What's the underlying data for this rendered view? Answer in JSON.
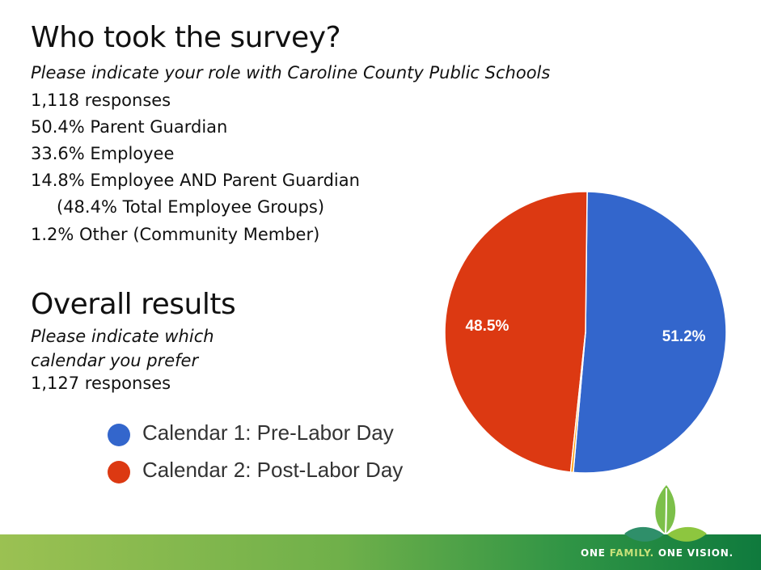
{
  "survey": {
    "title": "Who took the survey?",
    "subtitle": "Please indicate your role with Caroline County Public Schools",
    "lines": [
      "1,118 responses",
      "50.4% Parent Guardian",
      "33.6% Employee",
      "14.8% Employee AND Parent Guardian",
      "(48.4% Total Employee Groups)",
      "1.2% Other (Community Member)"
    ]
  },
  "results": {
    "title": "Overall results",
    "subtitle_line1": "Please indicate which",
    "subtitle_line2": "calendar you prefer",
    "responses": "1,127 responses"
  },
  "chart_data": {
    "type": "pie",
    "categories": [
      "Calendar 1: Pre-Labor Day",
      "Calendar 2: Post-Labor Day",
      ""
    ],
    "values": [
      51.2,
      48.5,
      0.3
    ],
    "slice_labels": [
      "51.2%",
      "48.5%",
      ""
    ],
    "colors": [
      "#3366cc",
      "#dc3912",
      "#ff9900"
    ],
    "start_angle_deg": 265,
    "legend": "left",
    "title": "",
    "legend_entries": [
      "Calendar 1: Pre-Labor Day",
      "Calendar 2: Post-Labor Day"
    ]
  },
  "footer": {
    "tagline_part1": "ONE ",
    "tagline_part2": "FAMILY.",
    "tagline_part3": " ONE VISION.",
    "band_colors": [
      "#9bc152",
      "#0f7a3d"
    ],
    "logo_icon": "leaf-icon"
  }
}
